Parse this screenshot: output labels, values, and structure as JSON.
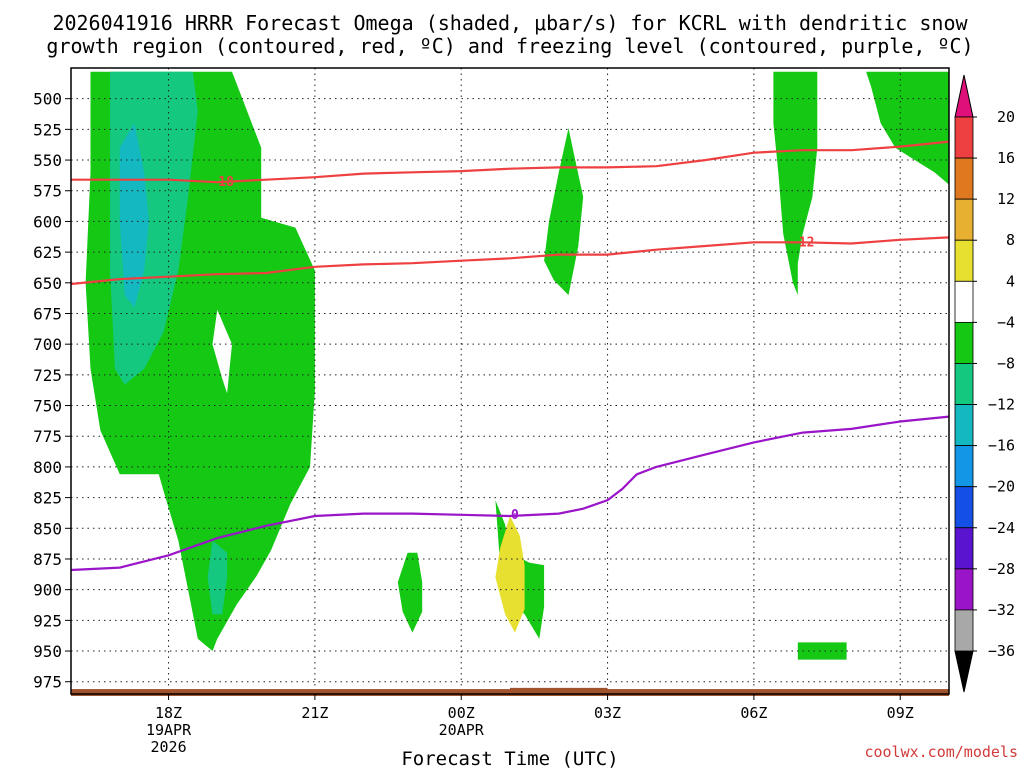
{
  "title_line1": "2026041916 HRRR Forecast Omega (shaded, μbar/s) for KCRL with dendritic snow",
  "title_line2": "growth region (contoured, red, ºC) and freezing level (contoured, purple, ºC)",
  "credit": "coolwx.com/models",
  "chart_data": {
    "type": "heatmap",
    "xlabel": "Forecast Time (UTC)",
    "ylabel": "",
    "x_range_hours": [
      16,
      34
    ],
    "y_range_mb": [
      475,
      985
    ],
    "y_ticks": [
      500,
      525,
      550,
      575,
      600,
      625,
      650,
      675,
      700,
      725,
      750,
      775,
      800,
      825,
      850,
      875,
      900,
      925,
      950,
      975
    ],
    "x_ticks": [
      {
        "t": 18,
        "lines": [
          "18Z",
          "19APR",
          "2026"
        ]
      },
      {
        "t": 21,
        "lines": [
          "21Z"
        ]
      },
      {
        "t": 24,
        "lines": [
          "00Z",
          "20APR"
        ]
      },
      {
        "t": 27,
        "lines": [
          "03Z"
        ]
      },
      {
        "t": 30,
        "lines": [
          "06Z"
        ]
      },
      {
        "t": 33,
        "lines": [
          "09Z"
        ]
      }
    ],
    "grid": "dotted",
    "colorbar": {
      "labels": [
        20,
        16,
        12,
        8,
        4,
        -4,
        -8,
        -12,
        -16,
        -20,
        -24,
        -28,
        -32,
        -36
      ],
      "colors": [
        "#e8e030",
        "#e8b030",
        "#e07820",
        "#ee4040",
        "#ffffff",
        "#14c814",
        "#14c880",
        "#14b8c0",
        "#1496e6",
        "#1450e6",
        "#5a14d0",
        "#9a14c8",
        "#a8a8a8"
      ],
      "top_color": "#e0107a",
      "bottom_color": "#000000"
    },
    "series": [
      {
        "name": "-18",
        "color": "#ee4040",
        "label": "-18",
        "label_at": {
          "t": 19.1,
          "mb": 568
        },
        "points": [
          [
            16,
            566
          ],
          [
            17,
            566
          ],
          [
            18,
            566
          ],
          [
            19,
            568
          ],
          [
            20,
            566
          ],
          [
            21,
            564
          ],
          [
            22,
            561
          ],
          [
            23,
            560
          ],
          [
            24,
            559
          ],
          [
            25,
            557
          ],
          [
            26,
            556
          ],
          [
            27,
            556
          ],
          [
            28,
            555
          ],
          [
            29,
            550
          ],
          [
            30,
            544
          ],
          [
            31,
            542
          ],
          [
            32,
            542
          ],
          [
            33,
            539
          ],
          [
            34,
            535
          ]
        ]
      },
      {
        "name": "-12",
        "color": "#ee4040",
        "label": "-12",
        "label_at": {
          "t": 31.0,
          "mb": 617
        },
        "points": [
          [
            16,
            651
          ],
          [
            17,
            647
          ],
          [
            18,
            645
          ],
          [
            19,
            643
          ],
          [
            20,
            642
          ],
          [
            21,
            637
          ],
          [
            22,
            635
          ],
          [
            23,
            634
          ],
          [
            24,
            632
          ],
          [
            25,
            630
          ],
          [
            26,
            627
          ],
          [
            27,
            627
          ],
          [
            28,
            623
          ],
          [
            29,
            620
          ],
          [
            30,
            617
          ],
          [
            31,
            617
          ],
          [
            32,
            618
          ],
          [
            33,
            615
          ],
          [
            34,
            613
          ]
        ]
      },
      {
        "name": "0",
        "color": "#9a14c8",
        "label": "0",
        "label_at": {
          "t": 25.1,
          "mb": 839
        },
        "points": [
          [
            16,
            884
          ],
          [
            17,
            882
          ],
          [
            18,
            872
          ],
          [
            19,
            858
          ],
          [
            20,
            848
          ],
          [
            21,
            840
          ],
          [
            22,
            838
          ],
          [
            23,
            838
          ],
          [
            24,
            839
          ],
          [
            25,
            840
          ],
          [
            26,
            838
          ],
          [
            26.5,
            834
          ],
          [
            27,
            827
          ],
          [
            27.3,
            818
          ],
          [
            27.6,
            806
          ],
          [
            28,
            800
          ],
          [
            29,
            790
          ],
          [
            30,
            780
          ],
          [
            31,
            772
          ],
          [
            32,
            769
          ],
          [
            33,
            763
          ],
          [
            34,
            759
          ]
        ]
      }
    ],
    "omega_regions": [
      {
        "value": -6,
        "color": "#14c814",
        "points": [
          [
            16.4,
            478
          ],
          [
            17.0,
            478
          ],
          [
            17.3,
            478
          ],
          [
            18.3,
            478
          ],
          [
            19.0,
            478
          ],
          [
            19.3,
            478
          ],
          [
            19.9,
            540
          ],
          [
            19.9,
            597
          ],
          [
            20.6,
            605
          ],
          [
            21.0,
            640
          ],
          [
            21.0,
            738
          ],
          [
            20.9,
            800
          ],
          [
            20.5,
            830
          ],
          [
            20.1,
            868
          ],
          [
            19.8,
            889
          ],
          [
            19.4,
            912
          ],
          [
            19.0,
            940
          ],
          [
            18.9,
            950
          ],
          [
            18.6,
            940
          ],
          [
            18.4,
            900
          ],
          [
            18.2,
            860
          ],
          [
            17.9,
            820
          ],
          [
            17.8,
            806
          ],
          [
            17.4,
            806
          ],
          [
            17.0,
            806
          ],
          [
            16.6,
            770
          ],
          [
            16.4,
            720
          ],
          [
            16.3,
            650
          ],
          [
            16.4,
            560
          ]
        ]
      },
      {
        "value": -6,
        "color": "#14c814",
        "points": [
          [
            25.7,
            632
          ],
          [
            25.8,
            600
          ],
          [
            26.0,
            560
          ],
          [
            26.2,
            524
          ],
          [
            26.3,
            543
          ],
          [
            26.5,
            580
          ],
          [
            26.4,
            620
          ],
          [
            26.2,
            660
          ],
          [
            25.9,
            648
          ]
        ]
      },
      {
        "value": -6,
        "color": "#14c814",
        "points": [
          [
            24.7,
            827
          ],
          [
            24.9,
            847
          ],
          [
            25.0,
            870
          ],
          [
            25.4,
            878
          ],
          [
            25.7,
            880
          ],
          [
            25.7,
            914
          ],
          [
            25.6,
            940
          ],
          [
            25.3,
            920
          ],
          [
            24.9,
            905
          ],
          [
            24.8,
            880
          ]
        ]
      },
      {
        "value": -6,
        "color": "#14c814",
        "points": [
          [
            22.7,
            894
          ],
          [
            22.9,
            870
          ],
          [
            23.1,
            870
          ],
          [
            23.2,
            894
          ],
          [
            23.2,
            918
          ],
          [
            23.0,
            935
          ],
          [
            22.8,
            918
          ]
        ]
      },
      {
        "value": -6,
        "color": "#14c814",
        "points": [
          [
            30.4,
            478
          ],
          [
            31.3,
            478
          ],
          [
            31.3,
            540
          ],
          [
            31.2,
            580
          ],
          [
            31.0,
            610
          ],
          [
            30.9,
            634
          ],
          [
            30.9,
            660
          ],
          [
            30.8,
            650
          ],
          [
            30.6,
            610
          ],
          [
            30.5,
            560
          ],
          [
            30.4,
            520
          ]
        ]
      },
      {
        "value": -6,
        "color": "#14c814",
        "points": [
          [
            31.9,
            478
          ],
          [
            34.0,
            478
          ],
          [
            34.0,
            570
          ],
          [
            33.7,
            560
          ],
          [
            33.3,
            550
          ],
          [
            32.9,
            540
          ],
          [
            32.6,
            520
          ],
          [
            32.4,
            490
          ],
          [
            32.3,
            478
          ]
        ]
      },
      {
        "value": -6,
        "color": "#14c814",
        "points": [
          [
            30.9,
            943
          ],
          [
            31.9,
            943
          ],
          [
            31.9,
            957
          ],
          [
            30.9,
            957
          ]
        ]
      },
      {
        "value": 6,
        "color": "#e8e030",
        "points": [
          [
            25.0,
            840
          ],
          [
            25.2,
            856
          ],
          [
            25.3,
            880
          ],
          [
            25.3,
            916
          ],
          [
            25.1,
            935
          ],
          [
            24.9,
            920
          ],
          [
            24.7,
            890
          ],
          [
            24.8,
            866
          ]
        ]
      },
      {
        "value": -10,
        "color": "#14c880",
        "points": [
          [
            16.8,
            478
          ],
          [
            18.1,
            478
          ],
          [
            18.5,
            478
          ],
          [
            18.6,
            510
          ],
          [
            18.4,
            580
          ],
          [
            18.2,
            640
          ],
          [
            17.9,
            690
          ],
          [
            17.5,
            720
          ],
          [
            17.1,
            733
          ],
          [
            16.9,
            720
          ],
          [
            16.8,
            640
          ],
          [
            16.8,
            560
          ]
        ]
      },
      {
        "value": -10,
        "color": "#14c880",
        "points": [
          [
            18.9,
            860
          ],
          [
            19.2,
            870
          ],
          [
            19.2,
            890
          ],
          [
            19.1,
            920
          ],
          [
            18.9,
            920
          ],
          [
            18.8,
            890
          ]
        ]
      },
      {
        "value": -14,
        "color": "#14b8c0",
        "points": [
          [
            17.0,
            540
          ],
          [
            17.3,
            520
          ],
          [
            17.5,
            560
          ],
          [
            17.6,
            600
          ],
          [
            17.5,
            640
          ],
          [
            17.3,
            670
          ],
          [
            17.1,
            660
          ],
          [
            17.0,
            600
          ]
        ]
      }
    ],
    "hole_regions": [
      {
        "color": "#ffffff",
        "points": [
          [
            19.0,
            672
          ],
          [
            19.3,
            700
          ],
          [
            19.2,
            740
          ],
          [
            19.1,
            728
          ],
          [
            18.9,
            700
          ]
        ]
      }
    ],
    "terrain": {
      "color": "#a0522d",
      "top_mb": 981,
      "bottom_mb": 985,
      "bump": [
        [
          25.0,
          980
        ],
        [
          27.0,
          980
        ]
      ]
    }
  }
}
